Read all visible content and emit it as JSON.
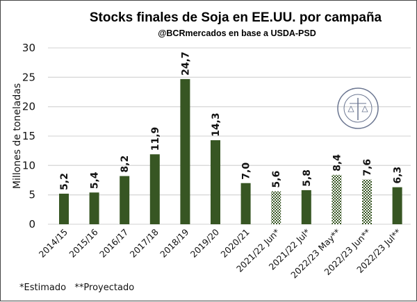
{
  "chart_data": {
    "type": "bar",
    "title": "Stocks finales de Soja en EE.UU. por campaña",
    "subtitle": "@BCRmercados en base a USDA-PSD",
    "ylabel": "Millones de toneladas",
    "xlabel": "",
    "ylim": [
      0,
      30
    ],
    "yticks": [
      0,
      5,
      10,
      15,
      20,
      25,
      30
    ],
    "grid": true,
    "categories": [
      "2014/15",
      "2015/16",
      "2016/17",
      "2017/18",
      "2018/19",
      "2019/20",
      "2020/21",
      "2021/22  Jun*",
      "2021/22  Jul*",
      "2022/23 May**",
      "2022/23 Jun**",
      "2022/23 Jul**"
    ],
    "values": [
      5.2,
      5.4,
      8.2,
      11.9,
      24.7,
      14.3,
      7.0,
      5.6,
      5.8,
      8.4,
      7.6,
      6.3
    ],
    "data_labels": [
      "5,2",
      "5,4",
      "8,2",
      "11,9",
      "24,7",
      "14,3",
      "7,0",
      "5,6",
      "5,8",
      "8,4",
      "7,6",
      "6,3"
    ],
    "patterned": [
      false,
      false,
      false,
      false,
      false,
      false,
      false,
      true,
      false,
      true,
      true,
      false
    ],
    "bar_color": "#375623",
    "footnote": "*Estimado   **Proyectado",
    "watermark": "BOLSA DE COMERCIO DE ROSARIO"
  }
}
